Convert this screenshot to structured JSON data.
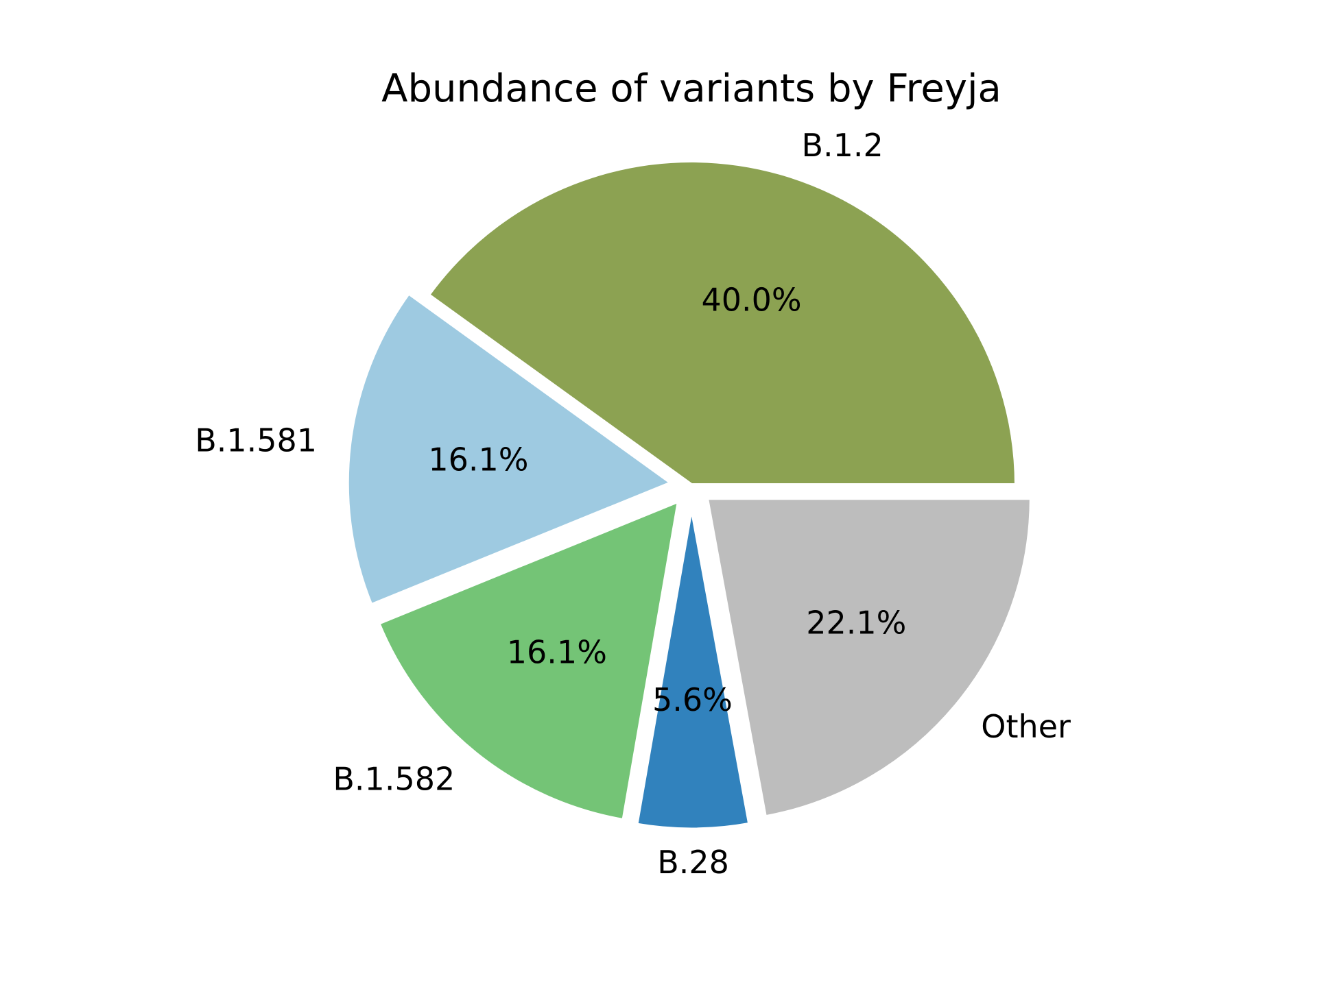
{
  "chart_data": {
    "type": "pie",
    "title": "Abundance of variants by Freyja",
    "slices": [
      {
        "label": "B.1.2",
        "value": 40.0,
        "pct_label": "40.0%",
        "color": "#8ca252",
        "exploded": false
      },
      {
        "label": "B.1.581",
        "value": 16.1,
        "pct_label": "16.1%",
        "color": "#9ecae1",
        "exploded": true
      },
      {
        "label": "B.1.582",
        "value": 16.1,
        "pct_label": "16.1%",
        "color": "#74c476",
        "exploded": true
      },
      {
        "label": "B.28",
        "value": 5.6,
        "pct_label": "5.6%",
        "color": "#3182bd",
        "exploded": true
      },
      {
        "label": "Other",
        "value": 22.1,
        "pct_label": "22.1%",
        "color": "#bdbdbd",
        "exploded": true
      }
    ],
    "start_angle_deg": 0,
    "direction": "counterclockwise",
    "legend": "none"
  }
}
